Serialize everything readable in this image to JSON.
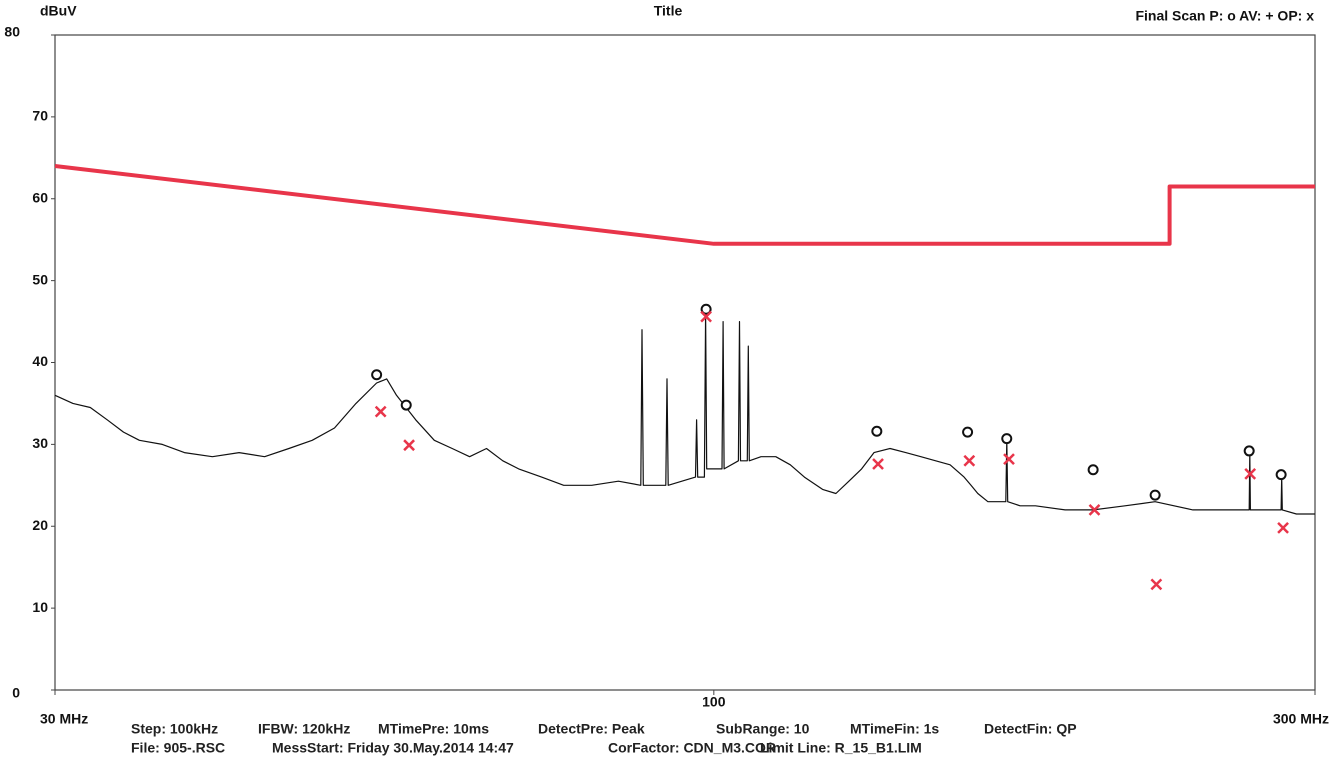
{
  "chart_data": {
    "type": "line",
    "title": "Title",
    "y_label": "dBuV",
    "legend_text": "Final Scan P: o  AV: +  OP: x",
    "xlog": true,
    "xlim": [
      30,
      300
    ],
    "ylim": [
      0,
      80
    ],
    "yticks": [
      0,
      10,
      20,
      30,
      40,
      50,
      60,
      70,
      80
    ],
    "xticks": [
      {
        "value": 30,
        "label": "30 MHz"
      },
      100,
      {
        "value": 300,
        "label": "300 MHz"
      }
    ],
    "series": [
      {
        "style": "line",
        "color": "#e8354a",
        "width": 4,
        "x": [
          30,
          100,
          230,
          230,
          300
        ],
        "values": [
          64,
          54.5,
          54.5,
          61.5,
          61.5
        ]
      },
      {
        "style": "line",
        "color": "#111111",
        "width": 1.2,
        "x": [
          30,
          31,
          32,
          33,
          34,
          35,
          36.5,
          38,
          40,
          42,
          44,
          46,
          48,
          50,
          52,
          54,
          55,
          56,
          58,
          60,
          62,
          64,
          66,
          68,
          70,
          73,
          76,
          80,
          84,
          87.5,
          87.7,
          87.9,
          91.6,
          91.8,
          92,
          96.7,
          96.9,
          97.1,
          98.3,
          98.5,
          98.7,
          101.5,
          101.7,
          101.9,
          104.6,
          104.8,
          105,
          106.3,
          106.5,
          106.7,
          109,
          112,
          115,
          118,
          122,
          125,
          128,
          131,
          134,
          138,
          142,
          146,
          150,
          154,
          158,
          160,
          162,
          165,
          168,
          170.5,
          170.8,
          171.1,
          175,
          180,
          190,
          200,
          212,
          224,
          240,
          255,
          266,
          266.3,
          266.6,
          275,
          282,
          282.3,
          282.6,
          290,
          300
        ],
        "values": [
          36,
          35,
          34.5,
          33,
          31.5,
          30.5,
          30,
          29,
          28.5,
          29,
          28.5,
          29.5,
          30.5,
          32,
          35,
          37.5,
          38,
          36,
          33,
          30.5,
          29.5,
          28.5,
          29.5,
          28,
          27,
          26,
          25,
          25,
          25.5,
          25,
          44,
          25,
          25,
          38,
          25,
          26,
          33,
          26,
          26,
          46,
          27,
          27,
          45,
          27,
          28,
          45,
          28,
          28,
          42,
          28,
          28.5,
          28.5,
          27.5,
          26,
          24.5,
          24,
          25.5,
          27,
          29,
          29.5,
          29,
          28.5,
          28,
          27.5,
          26,
          25,
          24,
          23,
          23,
          23,
          30.5,
          23,
          22.5,
          22.5,
          22,
          22,
          22.5,
          23,
          22,
          22,
          22,
          29,
          22,
          22,
          22,
          26,
          22,
          21.5,
          21.5
        ]
      },
      {
        "style": "o",
        "color": "#111111",
        "x": [
          54,
          57,
          98.6,
          134.7,
          159,
          170.8,
          200,
          224,
          266,
          282
        ],
        "values": [
          38.5,
          34.8,
          46.5,
          31.6,
          31.5,
          30.7,
          26.9,
          23.8,
          29.2,
          26.3
        ]
      },
      {
        "style": "x",
        "color": "#e8354a",
        "x": [
          54.4,
          57.3,
          98.6,
          135,
          159.5,
          171.5,
          200.5,
          224.5,
          266.5,
          283
        ],
        "values": [
          34,
          29.9,
          45.6,
          27.6,
          28,
          28.2,
          22,
          12.9,
          26.4,
          19.8
        ]
      }
    ],
    "footer": [
      [
        "Step: 100kHz",
        "IFBW: 120kHz",
        "MTimePre: 10ms",
        "DetectPre: Peak",
        "SubRange: 10",
        "MTimeFin:  1s",
        "DetectFin: QP"
      ],
      [
        "File: 905-.RSC",
        "MessStart: Friday  30.May.2014  14:47",
        "CorFactor: CDN_M3.COR",
        "Limit Line: R_15_B1.LIM"
      ]
    ]
  }
}
